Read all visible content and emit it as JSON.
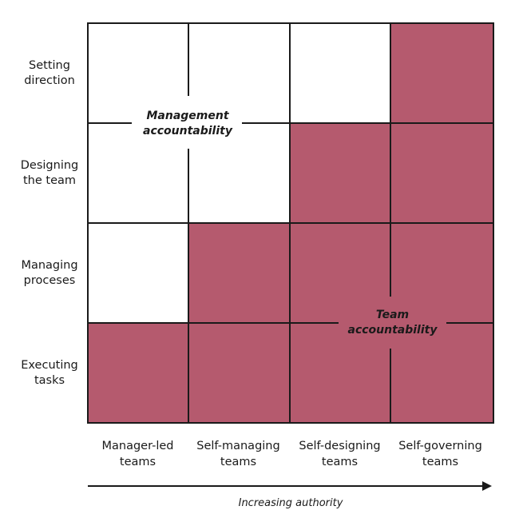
{
  "colors": {
    "filled": "#b55a6e",
    "empty": "#ffffff",
    "line": "#1a1a1a"
  },
  "rows": [
    {
      "label": "Setting\ndirection"
    },
    {
      "label": "Designing\nthe team"
    },
    {
      "label": "Managing\nproceses"
    },
    {
      "label": "Executing\ntasks"
    }
  ],
  "columns": [
    {
      "label": "Manager-led\nteams"
    },
    {
      "label": "Self-managing\nteams"
    },
    {
      "label": "Self-designing\nteams"
    },
    {
      "label": "Self-governing\nteams"
    }
  ],
  "cells_filled": [
    [
      false,
      false,
      false,
      true
    ],
    [
      false,
      false,
      true,
      true
    ],
    [
      false,
      true,
      true,
      true
    ],
    [
      true,
      true,
      true,
      true
    ]
  ],
  "labels": {
    "management": "Management\naccountability",
    "team": "Team\naccountability",
    "axis": "Increasing authority"
  }
}
